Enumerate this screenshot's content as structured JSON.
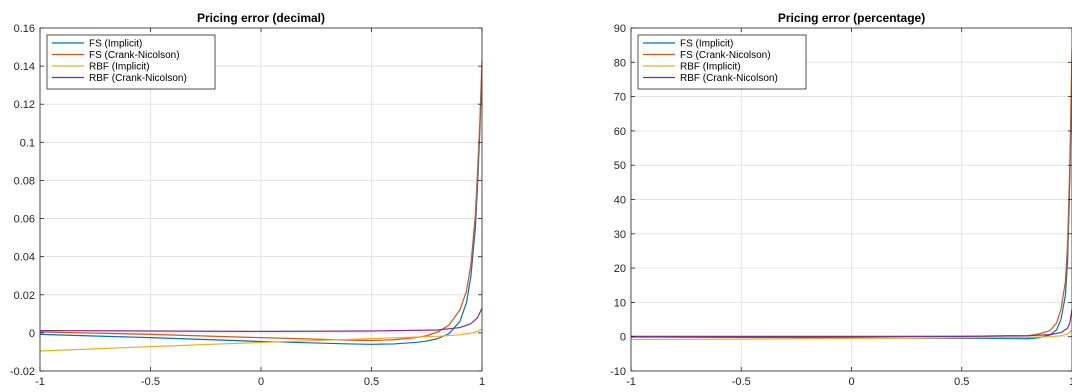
{
  "chart_data": [
    {
      "type": "line",
      "title": "Pricing error (decimal)",
      "xlabel": "",
      "ylabel": "",
      "xlim": [
        -1,
        1
      ],
      "ylim": [
        -0.02,
        0.16
      ],
      "xticks": [
        -1,
        -0.5,
        0,
        0.5,
        1
      ],
      "xtick_labels": [
        "-1",
        "-0.5",
        "0",
        "0.5",
        "1"
      ],
      "yticks": [
        -0.02,
        0,
        0.02,
        0.04,
        0.06,
        0.08,
        0.1,
        0.12,
        0.14,
        0.16
      ],
      "ytick_labels": [
        "-0.02",
        "0",
        "0.02",
        "0.04",
        "0.06",
        "0.08",
        "0.1",
        "0.12",
        "0.14",
        "0.16"
      ],
      "grid": true,
      "legend": "top-left",
      "series": [
        {
          "name": "FS (Implicit)",
          "color": "#0072BD",
          "x": [
            -1,
            -0.5,
            0,
            0.4,
            0.5,
            0.6,
            0.7,
            0.75,
            0.8,
            0.85,
            0.9,
            0.93,
            0.95,
            0.97,
            0.98,
            0.99,
            1.0
          ],
          "y": [
            -0.0008,
            -0.0025,
            -0.0045,
            -0.0058,
            -0.006,
            -0.0058,
            -0.005,
            -0.0043,
            -0.003,
            -0.0005,
            0.006,
            0.016,
            0.03,
            0.055,
            0.078,
            0.105,
            0.14
          ]
        },
        {
          "name": "FS (Crank-Nicolson)",
          "color": "#D95319",
          "x": [
            -1,
            -0.5,
            0,
            0.4,
            0.5,
            0.6,
            0.7,
            0.75,
            0.8,
            0.85,
            0.9,
            0.93,
            0.95,
            0.97,
            0.98,
            0.99,
            1.0
          ],
          "y": [
            0.0005,
            -0.0008,
            -0.0025,
            -0.0038,
            -0.004,
            -0.0036,
            -0.0025,
            -0.0015,
            0.0005,
            0.004,
            0.012,
            0.022,
            0.036,
            0.062,
            0.085,
            0.11,
            0.143
          ]
        },
        {
          "name": "RBF (Implicit)",
          "color": "#EDB120",
          "x": [
            -1,
            -0.5,
            0,
            0.5,
            0.8,
            0.9,
            0.95,
            0.98,
            1.0
          ],
          "y": [
            -0.0095,
            -0.0072,
            -0.005,
            -0.003,
            -0.0018,
            -0.001,
            -0.0002,
            0.0008,
            0.002
          ]
        },
        {
          "name": "RBF (Crank-Nicolson)",
          "color": "#7E2F8E",
          "x": [
            -1,
            -0.5,
            0,
            0.5,
            0.8,
            0.9,
            0.95,
            0.98,
            1.0
          ],
          "y": [
            0.0012,
            0.001,
            0.0008,
            0.001,
            0.0015,
            0.0028,
            0.0048,
            0.008,
            0.013
          ]
        }
      ]
    },
    {
      "type": "line",
      "title": "Pricing error (percentage)",
      "xlabel": "",
      "ylabel": "",
      "xlim": [
        -1,
        1
      ],
      "ylim": [
        -10,
        90
      ],
      "xticks": [
        -1,
        -0.5,
        0,
        0.5,
        1
      ],
      "xtick_labels": [
        "-1",
        "-0.5",
        "0",
        "0.5",
        "1"
      ],
      "yticks": [
        -10,
        0,
        10,
        20,
        30,
        40,
        50,
        60,
        70,
        80,
        90
      ],
      "ytick_labels": [
        "-10",
        "0",
        "10",
        "20",
        "30",
        "40",
        "50",
        "60",
        "70",
        "80",
        "90"
      ],
      "grid": true,
      "legend": "top-left",
      "series": [
        {
          "name": "FS (Implicit)",
          "color": "#0072BD",
          "x": [
            -1,
            -0.5,
            0,
            0.5,
            0.8,
            0.85,
            0.9,
            0.93,
            0.95,
            0.97,
            0.98,
            0.99,
            1.0
          ],
          "y": [
            -0.1,
            -0.2,
            -0.3,
            -0.5,
            -0.6,
            -0.3,
            0.5,
            2,
            5,
            12,
            22,
            45,
            80
          ]
        },
        {
          "name": "FS (Crank-Nicolson)",
          "color": "#D95319",
          "x": [
            -1,
            -0.5,
            0,
            0.5,
            0.8,
            0.85,
            0.9,
            0.93,
            0.95,
            0.97,
            0.98,
            0.99,
            1.0
          ],
          "y": [
            0.0,
            0.0,
            0.0,
            0.1,
            0.3,
            0.8,
            1.8,
            4,
            8,
            16,
            27,
            50,
            84
          ]
        },
        {
          "name": "RBF (Implicit)",
          "color": "#EDB120",
          "x": [
            -1,
            -0.5,
            0,
            0.5,
            0.8,
            0.9,
            0.95,
            0.98,
            0.99,
            1.0
          ],
          "y": [
            -0.8,
            -0.7,
            -0.5,
            -0.3,
            -0.2,
            0.0,
            0.3,
            0.8,
            1.3,
            2
          ]
        },
        {
          "name": "RBF (Crank-Nicolson)",
          "color": "#7E2F8E",
          "x": [
            -1,
            -0.5,
            0,
            0.5,
            0.8,
            0.9,
            0.95,
            0.98,
            0.99,
            1.0
          ],
          "y": [
            0.1,
            0.1,
            0.1,
            0.1,
            0.3,
            0.6,
            1.2,
            2.5,
            4,
            8
          ]
        }
      ]
    }
  ]
}
